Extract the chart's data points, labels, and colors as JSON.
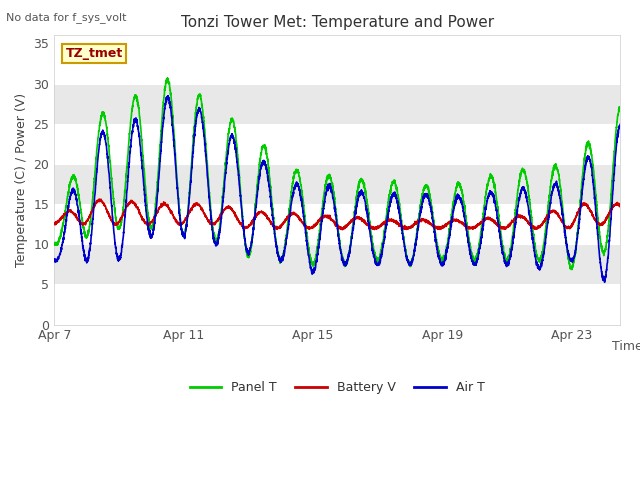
{
  "title": "Tonzi Tower Met: Temperature and Power",
  "top_left_text": "No data for f_sys_volt",
  "ylabel": "Temperature (C) / Power (V)",
  "xlabel": "Time",
  "ylim": [
    0,
    36
  ],
  "yticks": [
    0,
    5,
    10,
    15,
    20,
    25,
    30,
    35
  ],
  "xtick_labels": [
    "Apr 7",
    "Apr 11",
    "Apr 15",
    "Apr 19",
    "Apr 23"
  ],
  "xtick_positions": [
    0,
    4,
    8,
    12,
    16
  ],
  "xlim": [
    0,
    17.5
  ],
  "tag_text": "TZ_tmet",
  "tag_bg": "#ffffcc",
  "tag_border": "#cc9900",
  "panel_t_color": "#00cc00",
  "battery_v_color": "#cc0000",
  "air_t_color": "#0000cc",
  "bg_white": "#ffffff",
  "bg_gray": "#e8e8e8",
  "linewidth": 1.2,
  "title_fontsize": 11,
  "tick_fontsize": 9,
  "label_fontsize": 9,
  "legend_fontsize": 9
}
